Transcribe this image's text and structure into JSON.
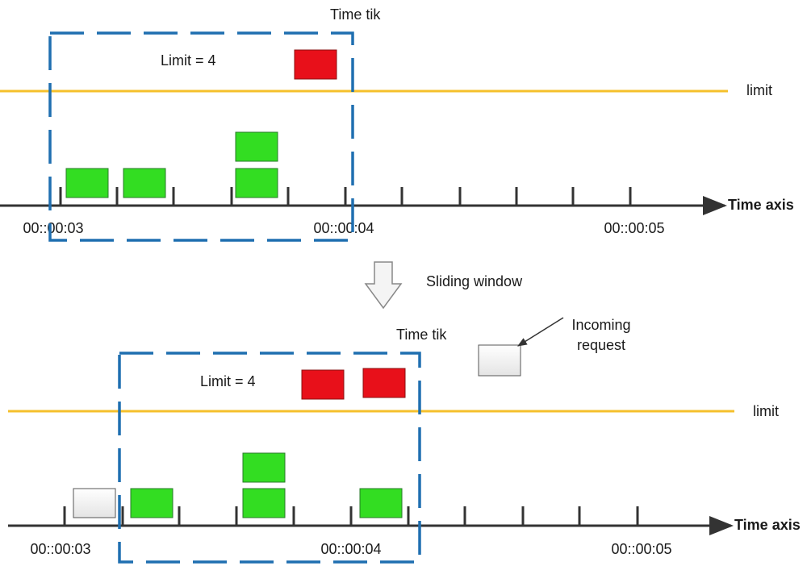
{
  "colors": {
    "window": "#1f6fb0",
    "limit_line": "#f5c02c",
    "accepted": "#33dd22",
    "rejected": "#e8101a",
    "incoming": "#f2f2f2",
    "axis": "#333333"
  },
  "top": {
    "time_tik": "Time tik",
    "limit_text": "Limit = 4",
    "limit_label": "limit",
    "axis_label": "Time axis",
    "ticks": [
      "00::00:03",
      "00::00:04",
      "00::00:05"
    ]
  },
  "transition": {
    "label": "Sliding window",
    "icon": "down-arrow-icon"
  },
  "bottom": {
    "time_tik": "Time tik",
    "limit_text": "Limit = 4",
    "limit_label": "limit",
    "axis_label": "Time axis",
    "ticks": [
      "00::00:03",
      "00::00:04",
      "00::00:05"
    ],
    "incoming_line1": "Incoming",
    "incoming_line2": "request"
  }
}
